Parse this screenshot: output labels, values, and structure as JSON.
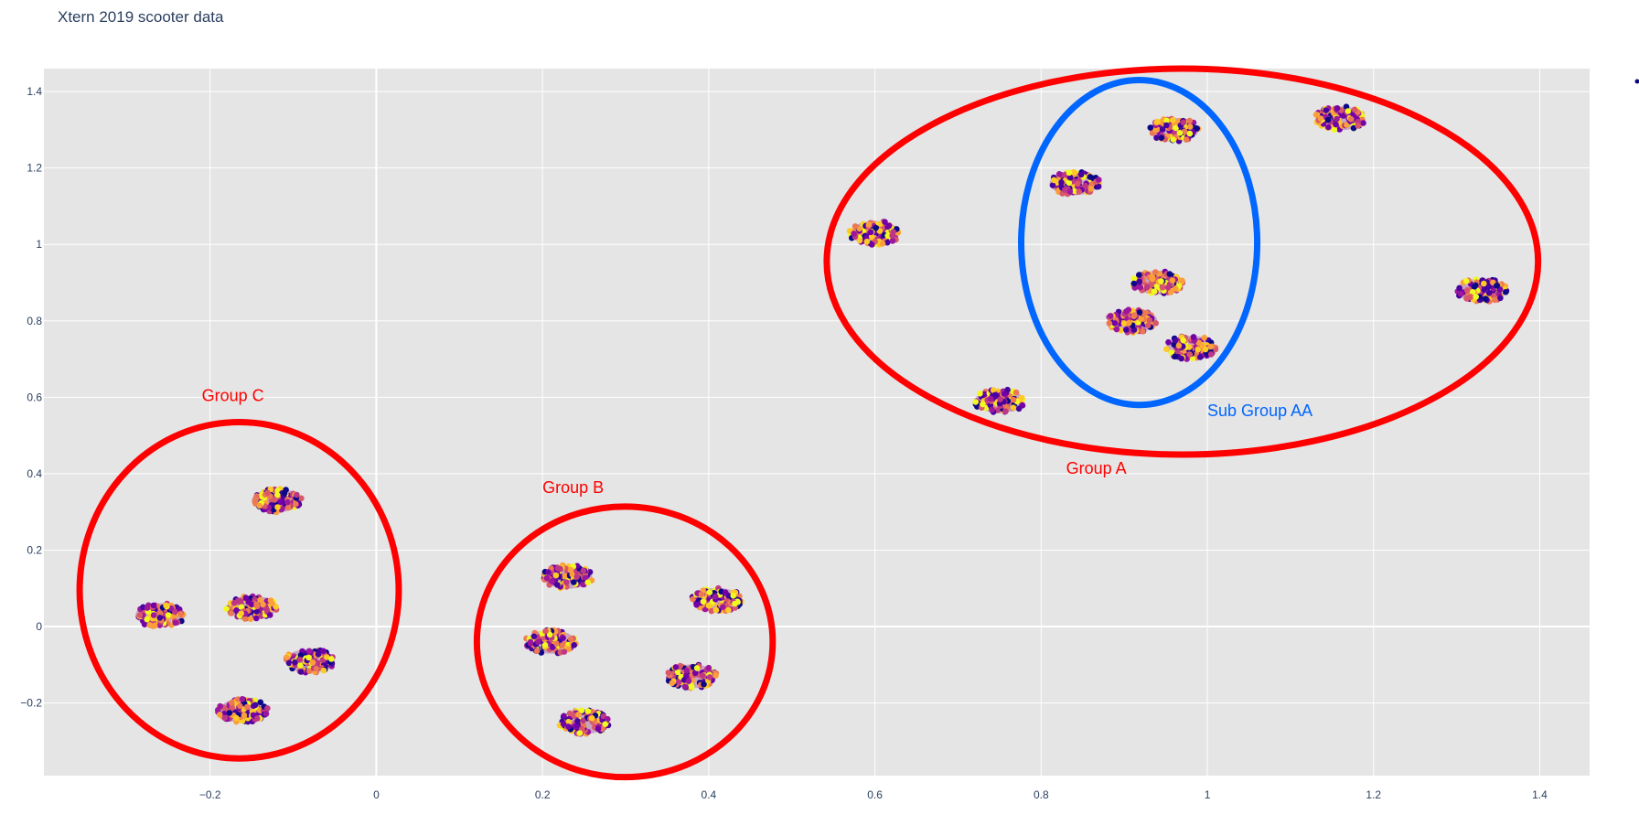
{
  "chart_data": {
    "type": "scatter",
    "title": "Xtern 2019 scooter data",
    "xlabel": "",
    "ylabel": "",
    "xlim": [
      -0.4,
      1.46
    ],
    "ylim": [
      -0.39,
      1.46
    ],
    "xticks": [
      -0.2,
      0,
      0.2,
      0.4,
      0.6,
      0.8,
      1,
      1.2,
      1.4
    ],
    "yticks": [
      -0.2,
      0,
      0.2,
      0.4,
      0.6,
      0.8,
      1,
      1.2,
      1.4
    ],
    "xtick_labels": [
      "−0.2",
      "0",
      "0.2",
      "0.4",
      "0.6",
      "0.8",
      "1",
      "1.2",
      "1.4"
    ],
    "ytick_labels": [
      "−0.2",
      "0",
      "0.2",
      "0.4",
      "0.6",
      "0.8",
      "1",
      "1.2",
      "1.4"
    ],
    "grid": true,
    "background_color": "#e5e5e5",
    "colorscale": [
      "#0d0887",
      "#46039f",
      "#7201a8",
      "#9c179e",
      "#bd3786",
      "#d8576b",
      "#ed7953",
      "#fb9f3a",
      "#fdca26",
      "#f0f921"
    ],
    "clusters": [
      {
        "x": -0.26,
        "y": 0.03
      },
      {
        "x": -0.15,
        "y": 0.05
      },
      {
        "x": -0.12,
        "y": 0.33
      },
      {
        "x": -0.08,
        "y": -0.09
      },
      {
        "x": -0.16,
        "y": -0.22
      },
      {
        "x": 0.23,
        "y": 0.13
      },
      {
        "x": 0.21,
        "y": -0.04
      },
      {
        "x": 0.25,
        "y": -0.25
      },
      {
        "x": 0.38,
        "y": -0.13
      },
      {
        "x": 0.41,
        "y": 0.07
      },
      {
        "x": 0.6,
        "y": 1.03
      },
      {
        "x": 0.75,
        "y": 0.59
      },
      {
        "x": 0.84,
        "y": 1.16
      },
      {
        "x": 0.91,
        "y": 0.8
      },
      {
        "x": 0.94,
        "y": 0.9
      },
      {
        "x": 0.96,
        "y": 1.3
      },
      {
        "x": 0.98,
        "y": 0.73
      },
      {
        "x": 1.16,
        "y": 1.33
      },
      {
        "x": 1.33,
        "y": 0.88
      }
    ],
    "annotations": [
      {
        "text": "Group A",
        "x": 0.83,
        "y": 0.4,
        "color": "#ff0000"
      },
      {
        "text": "Sub Group AA",
        "x": 1.0,
        "y": 0.55,
        "color": "#0066ff"
      },
      {
        "text": "Group B",
        "x": 0.2,
        "y": 0.35,
        "color": "#ff0000"
      },
      {
        "text": "Group C",
        "x": -0.21,
        "y": 0.59,
        "color": "#ff0000"
      }
    ],
    "shapes": [
      {
        "type": "ellipse",
        "cx": 0.97,
        "cy": 0.955,
        "rx": 0.428,
        "ry": 0.505,
        "color": "#ff0000"
      },
      {
        "type": "ellipse",
        "cx": 0.918,
        "cy": 1.005,
        "rx": 0.142,
        "ry": 0.425,
        "color": "#0066ff"
      },
      {
        "type": "ellipse",
        "cx": 0.299,
        "cy": -0.04,
        "rx": 0.178,
        "ry": 0.354,
        "color": "#ff0000"
      },
      {
        "type": "ellipse",
        "cx": -0.165,
        "cy": 0.095,
        "rx": 0.192,
        "ry": 0.44,
        "color": "#ff0000"
      }
    ]
  }
}
